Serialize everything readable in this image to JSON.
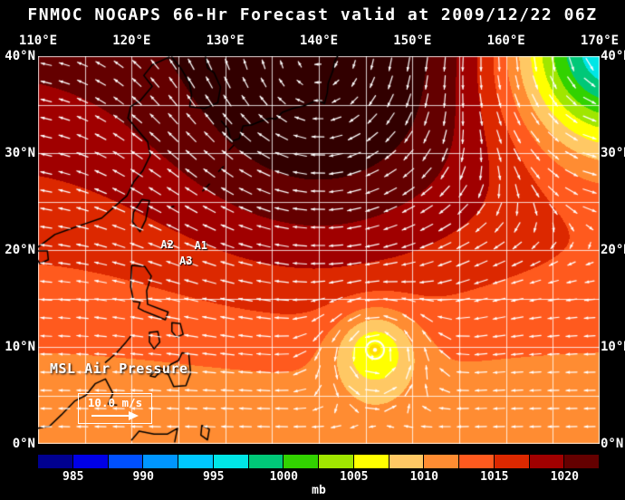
{
  "title": "FNMOC NOGAPS 66-Hr Forecast valid at 2009/12/22 06Z",
  "map": {
    "extent": {
      "lon_min": 110,
      "lon_max": 170,
      "lat_min": 0,
      "lat_max": 40
    },
    "grid_step_deg": 5,
    "lon_labels": [
      {
        "value": 110,
        "label": "110°E"
      },
      {
        "value": 120,
        "label": "120°E"
      },
      {
        "value": 130,
        "label": "130°E"
      },
      {
        "value": 140,
        "label": "140°E"
      },
      {
        "value": 150,
        "label": "150°E"
      },
      {
        "value": 160,
        "label": "160°E"
      },
      {
        "value": 170,
        "label": "170°E"
      }
    ],
    "lat_labels": [
      {
        "value": 40,
        "label": "40°N"
      },
      {
        "value": 30,
        "label": "30°N"
      },
      {
        "value": 20,
        "label": "20°N"
      },
      {
        "value": 10,
        "label": "10°N"
      },
      {
        "value": 0,
        "label": "0°N"
      }
    ],
    "field_label": "MSL Air Pressure",
    "wind_scale": {
      "label": "10.0 m/s"
    },
    "annotations": [
      {
        "label": "A1",
        "lon": 127.4,
        "lat": 20.5
      },
      {
        "label": "A2",
        "lon": 123.8,
        "lat": 20.6
      },
      {
        "label": "A3",
        "lon": 125.8,
        "lat": 18.9
      }
    ],
    "coastlines": [
      [
        [
          110,
          20.3
        ],
        [
          111.8,
          21.6
        ],
        [
          113.5,
          22.2
        ],
        [
          115,
          22.7
        ],
        [
          116.8,
          23.3
        ],
        [
          118.2,
          24.5
        ],
        [
          119.5,
          25.6
        ],
        [
          120.2,
          27
        ],
        [
          121.2,
          28.2
        ],
        [
          122,
          29.8
        ],
        [
          121.7,
          31.2
        ],
        [
          120.8,
          32.2
        ],
        [
          119.6,
          33.6
        ],
        [
          119.9,
          34.8
        ],
        [
          120.9,
          35.4
        ],
        [
          122.2,
          36.9
        ],
        [
          121.3,
          38
        ],
        [
          122.2,
          39.1
        ],
        [
          124,
          39.9
        ]
      ],
      [
        [
          109.9,
          19.9
        ],
        [
          111,
          19.9
        ],
        [
          111.1,
          19
        ],
        [
          110.2,
          18.6
        ],
        [
          109.8,
          19.2
        ]
      ],
      [
        [
          124.3,
          39.9
        ],
        [
          125.3,
          38.7
        ],
        [
          126.2,
          37.2
        ],
        [
          126.4,
          36
        ],
        [
          126.2,
          34.8
        ],
        [
          127.8,
          34.6
        ],
        [
          129.2,
          35.2
        ],
        [
          129.5,
          36.8
        ],
        [
          128.8,
          38.3
        ],
        [
          128.1,
          38.8
        ],
        [
          127.9,
          39.9
        ]
      ],
      [
        [
          129.6,
          33.3
        ],
        [
          130.3,
          32.5
        ],
        [
          130.6,
          31.2
        ],
        [
          131.5,
          31.5
        ],
        [
          131.9,
          32.8
        ],
        [
          132.8,
          32.9
        ],
        [
          133.8,
          33.3
        ],
        [
          134.8,
          33.6
        ],
        [
          135.4,
          33.5
        ],
        [
          136.1,
          34.2
        ],
        [
          137.2,
          34.6
        ],
        [
          138.5,
          34.9
        ],
        [
          139.2,
          35.2
        ],
        [
          139.9,
          35.5
        ],
        [
          140.6,
          35.1
        ],
        [
          140.9,
          36.2
        ],
        [
          141,
          37.2
        ],
        [
          141.5,
          38.5
        ],
        [
          141.7,
          39.5
        ],
        [
          142,
          40
        ]
      ],
      [
        [
          121.9,
          25.1
        ],
        [
          121.1,
          25.2
        ],
        [
          120.2,
          23.9
        ],
        [
          120.1,
          22.9
        ],
        [
          120.9,
          21.9
        ],
        [
          121.5,
          23.1
        ],
        [
          121.9,
          25.1
        ]
      ],
      [
        [
          120,
          18.4
        ],
        [
          121.4,
          18.3
        ],
        [
          122.1,
          17.3
        ],
        [
          121.6,
          15.8
        ],
        [
          121.7,
          14.4
        ],
        [
          122.8,
          14
        ],
        [
          123.9,
          13.6
        ],
        [
          123.6,
          12.8
        ],
        [
          122.6,
          13.2
        ],
        [
          121.3,
          13.7
        ],
        [
          120.7,
          14
        ],
        [
          120.9,
          14.6
        ],
        [
          120.2,
          14.7
        ],
        [
          119.9,
          16.2
        ],
        [
          120,
          18.4
        ]
      ],
      [
        [
          124.3,
          12.5
        ],
        [
          125.2,
          12.4
        ],
        [
          125.5,
          11.3
        ],
        [
          124.8,
          11
        ],
        [
          124.3,
          11.6
        ],
        [
          124.3,
          12.5
        ]
      ],
      [
        [
          121.9,
          11.5
        ],
        [
          122.8,
          11.6
        ],
        [
          123,
          10.5
        ],
        [
          122.4,
          9.8
        ],
        [
          121.9,
          10.5
        ],
        [
          121.9,
          11.5
        ]
      ],
      [
        [
          122,
          7
        ],
        [
          122.9,
          7.9
        ],
        [
          123.5,
          7.6
        ],
        [
          124.2,
          8.2
        ],
        [
          125,
          8.6
        ],
        [
          125.4,
          9.4
        ],
        [
          126.1,
          9.3
        ],
        [
          126.3,
          7.3
        ],
        [
          125.8,
          6
        ],
        [
          124.5,
          5.9
        ],
        [
          123.9,
          7.2
        ],
        [
          123.1,
          7.5
        ],
        [
          122.5,
          6.9
        ],
        [
          122,
          7
        ]
      ],
      [
        [
          117.2,
          8.4
        ],
        [
          118.3,
          9.3
        ],
        [
          119.4,
          10.5
        ],
        [
          119.9,
          11.1
        ]
      ],
      [
        [
          110,
          1.6
        ],
        [
          111.2,
          1.8
        ],
        [
          112.5,
          3
        ],
        [
          113.9,
          4.4
        ],
        [
          115.1,
          5
        ],
        [
          116.1,
          6.2
        ],
        [
          117.2,
          6.7
        ],
        [
          118,
          5.2
        ],
        [
          117.5,
          4.1
        ],
        [
          118.4,
          4
        ]
      ],
      [
        [
          120,
          0.4
        ],
        [
          120.8,
          1.3
        ],
        [
          122.4,
          1
        ],
        [
          123.8,
          1
        ],
        [
          124.9,
          1.6
        ],
        [
          124.6,
          0.2
        ]
      ],
      [
        [
          127.5,
          1.9
        ],
        [
          128.3,
          1.5
        ],
        [
          128.1,
          0.4
        ],
        [
          127.4,
          0.9
        ],
        [
          127.5,
          1.9
        ]
      ],
      [
        [
          124.1,
          24.4
        ],
        [
          124.5,
          24.5
        ]
      ],
      [
        [
          127.6,
          26.1
        ],
        [
          128.3,
          26.8
        ]
      ],
      [
        [
          129.3,
          28.1
        ],
        [
          129.8,
          28.6
        ]
      ],
      [
        [
          130.4,
          30.3
        ],
        [
          130.9,
          30.8
        ]
      ]
    ]
  },
  "colorbar": {
    "units": "mb",
    "segment_width_mb": 2.5,
    "segments": [
      {
        "value": 982.5,
        "color": "#000090"
      },
      {
        "value": 985,
        "color": "#0000e6"
      },
      {
        "value": 987.5,
        "color": "#0050ff"
      },
      {
        "value": 990,
        "color": "#0096ff"
      },
      {
        "value": 992.5,
        "color": "#00c8ff"
      },
      {
        "value": 995,
        "color": "#00e6e6"
      },
      {
        "value": 997.5,
        "color": "#00c878"
      },
      {
        "value": 1000,
        "color": "#32d200"
      },
      {
        "value": 1002.5,
        "color": "#a0e600"
      },
      {
        "value": 1005,
        "color": "#ffff00"
      },
      {
        "value": 1007.5,
        "color": "#ffc864"
      },
      {
        "value": 1010,
        "color": "#ff8c32"
      },
      {
        "value": 1012.5,
        "color": "#ff5a1e"
      },
      {
        "value": 1015,
        "color": "#dc2800"
      },
      {
        "value": 1017.5,
        "color": "#a00000"
      },
      {
        "value": 1020,
        "color": "#640000"
      }
    ],
    "over_color": "#320000",
    "tick_values": [
      985,
      990,
      995,
      1000,
      1005,
      1010,
      1015,
      1020
    ],
    "tick_labels": [
      "985",
      "990",
      "995",
      "1000",
      "1005",
      "1010",
      "1015",
      "1020"
    ]
  },
  "chart_data": {
    "type": "heatmap",
    "title": "FNMOC NOGAPS 66-Hr Forecast valid at 2009/12/22 06Z",
    "field": "MSL Air Pressure",
    "units": "mb",
    "lon_range": [
      110,
      170
    ],
    "lat_range": [
      0,
      40
    ],
    "colormap_ticks_mb": [
      985,
      990,
      995,
      1000,
      1005,
      1010,
      1015,
      1020
    ],
    "base_pressure": {
      "p_south": 1010,
      "p_north": 1020.5
    },
    "pressure_features": [
      {
        "name": "subtropical-high",
        "lon": 140,
        "lat": 33,
        "amplitude_mb": 6,
        "radius_deg": 12
      },
      {
        "name": "northeast-low",
        "lon": 171.5,
        "lat": 41.5,
        "amplitude_mb": -26,
        "radius_deg": 8
      },
      {
        "name": "tropical-cyclone",
        "lon": 146,
        "lat": 9.7,
        "amplitude_mb": -8,
        "radius_deg": 3
      }
    ],
    "cyclone_marker": {
      "lon": 146,
      "lat": 9.7,
      "fill": "#ffe000",
      "ring": "#ffffff"
    },
    "wind": {
      "type": "vector-field",
      "scale_reference_m_s": 10,
      "arrow_color": "#ffffff"
    },
    "storm_position_labels": [
      "A1",
      "A2",
      "A3"
    ]
  }
}
